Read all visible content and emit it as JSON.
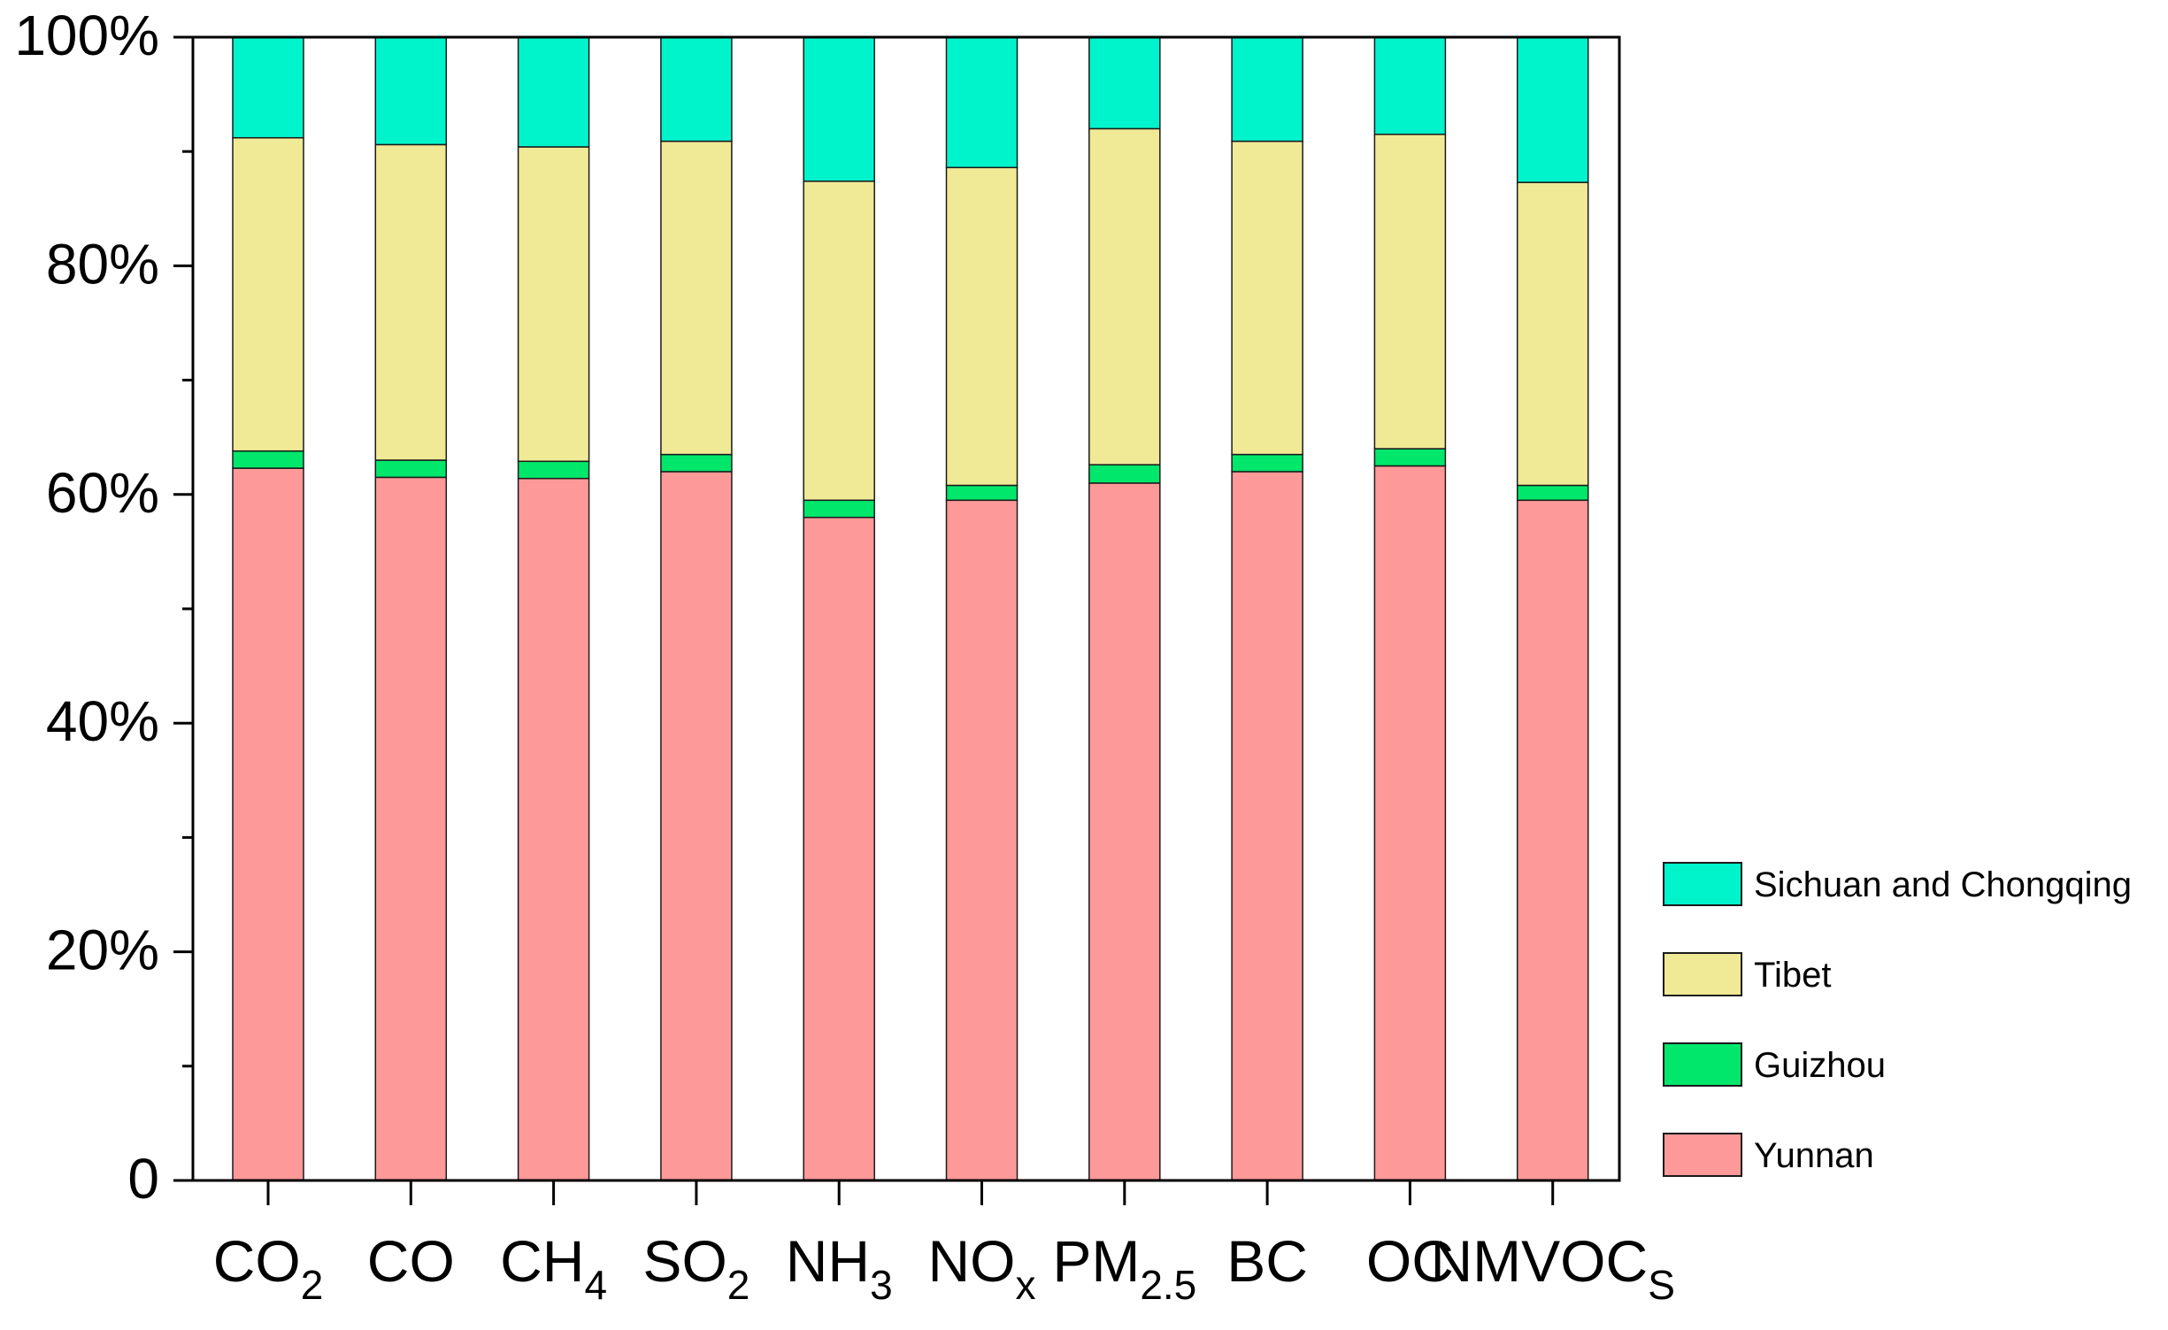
{
  "chart_data": {
    "type": "bar",
    "stacked": true,
    "title": "",
    "xlabel": "",
    "ylabel": "",
    "ylim": [
      0,
      100
    ],
    "y_ticks": [
      {
        "value": 0,
        "label": "0"
      },
      {
        "value": 20,
        "label": "20%"
      },
      {
        "value": 40,
        "label": "40%"
      },
      {
        "value": 60,
        "label": "60%"
      },
      {
        "value": 80,
        "label": "80%"
      },
      {
        "value": 100,
        "label": "100%"
      }
    ],
    "categories": [
      {
        "base": "CO",
        "sub": "2"
      },
      {
        "base": "CO",
        "sub": ""
      },
      {
        "base": "CH",
        "sub": "4"
      },
      {
        "base": "SO",
        "sub": "2"
      },
      {
        "base": "NH",
        "sub": "3"
      },
      {
        "base": "NO",
        "sub": "x"
      },
      {
        "base": "PM",
        "sub": "2.5"
      },
      {
        "base": "BC",
        "sub": ""
      },
      {
        "base": "OC",
        "sub": ""
      },
      {
        "base": "NMVOC",
        "sub": "S"
      }
    ],
    "series": [
      {
        "name": "Yunnan",
        "color": "#fd9999",
        "values": [
          62.3,
          61.5,
          61.4,
          62.0,
          58.0,
          59.5,
          61.0,
          62.0,
          62.5,
          59.5
        ]
      },
      {
        "name": "Guizhou",
        "color": "#00e76b",
        "values": [
          1.5,
          1.5,
          1.5,
          1.5,
          1.5,
          1.3,
          1.6,
          1.5,
          1.5,
          1.3
        ]
      },
      {
        "name": "Tibet",
        "color": "#f0e996",
        "values": [
          27.4,
          27.6,
          27.5,
          27.4,
          27.9,
          27.8,
          29.4,
          27.4,
          27.5,
          26.5
        ]
      },
      {
        "name": "Sichuan and Chongqing",
        "color": "#00f4cc",
        "values": [
          8.8,
          9.4,
          9.6,
          9.1,
          12.6,
          11.4,
          8.0,
          9.1,
          8.5,
          12.7
        ]
      }
    ],
    "legend": {
      "position": "right",
      "order": [
        "Sichuan and Chongqing",
        "Tibet",
        "Guizhou",
        "Yunnan"
      ]
    }
  }
}
